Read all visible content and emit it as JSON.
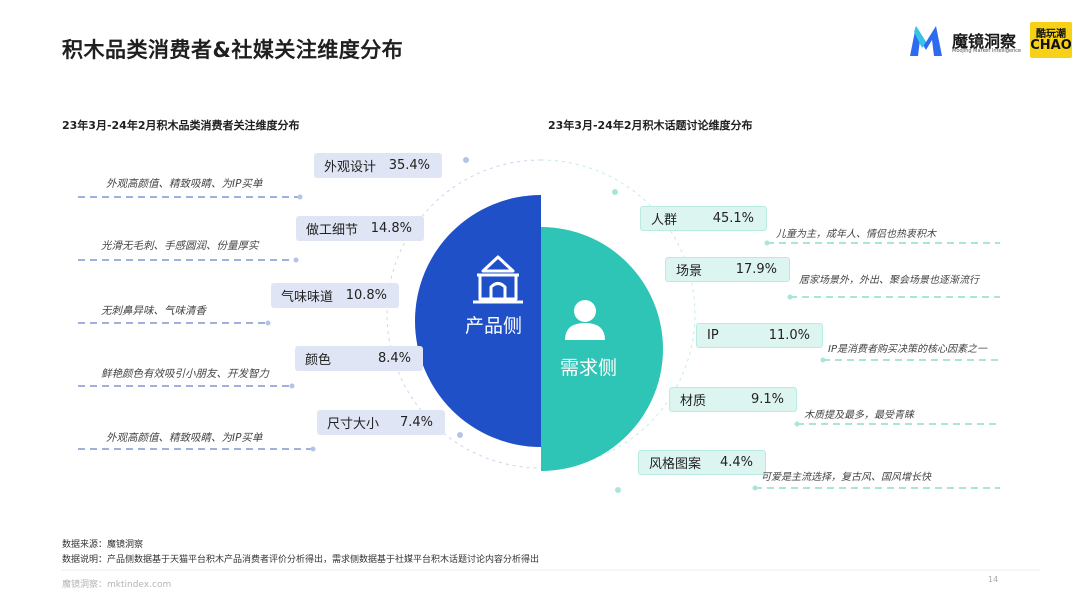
{
  "title": "积木品类消费者&社媒关注维度分布",
  "logo": {
    "name": "魔镜洞察",
    "tagline": "Moojing Market Intelligence",
    "partner_line1": "酷玩潮",
    "partner_line2": "CHAO"
  },
  "left_panel": {
    "subtitle": "23年3月-24年2月积木品类消费者关注维度分布",
    "center_label": "产品侧",
    "items": [
      {
        "label": "外观设计",
        "value": "35.4%",
        "note": "外观高颜值、精致吸睛、为IP买单"
      },
      {
        "label": "做工细节",
        "value": "14.8%",
        "note": "光滑无毛刺、手感圆润、份量厚实"
      },
      {
        "label": "气味味道",
        "value": "10.8%",
        "note": "无刺鼻异味、气味清香"
      },
      {
        "label": "颜色",
        "value": "8.4%",
        "note": "鲜艳颜色有效吸引小朋友、开发智力"
      },
      {
        "label": "尺寸大小",
        "value": "7.4%",
        "note": "外观高颜值、精致吸睛、为IP买单"
      }
    ]
  },
  "right_panel": {
    "subtitle": "23年3月-24年2月积木话题讨论维度分布",
    "center_label": "需求侧",
    "items": [
      {
        "label": "人群",
        "value": "45.1%",
        "note": "儿童为主，成年人、情侣也热衷积木"
      },
      {
        "label": "场景",
        "value": "17.9%",
        "note": "居家场景外，外出、聚会场景也逐渐流行"
      },
      {
        "label": "IP",
        "value": "11.0%",
        "note": "IP是消费者购买决策的核心因素之一"
      },
      {
        "label": "材质",
        "value": "9.1%",
        "note": "木质提及最多，最受青睐"
      },
      {
        "label": "风格图案",
        "value": "4.4%",
        "note": "可爱是主流选择，复古风、国风增长快"
      }
    ]
  },
  "footer": {
    "source": "数据来源：魔镜洞察",
    "explanation": "数据说明：产品侧数据基于天猫平台积木产品消费者评价分析得出，需求侧数据基于社媒平台积木话题讨论内容分析得出",
    "site": "魔镜洞察：mktindex.com",
    "page": "14"
  },
  "colors": {
    "product_side": "#1f50c8",
    "demand_side": "#2ec4b6",
    "left_box": "#dfe5f4",
    "right_box": "#ddf5f1",
    "dash_left": "#9fb2de",
    "dash_right": "#a8e6dc"
  },
  "icons": {
    "product": "building-icon",
    "demand": "person-icon"
  }
}
